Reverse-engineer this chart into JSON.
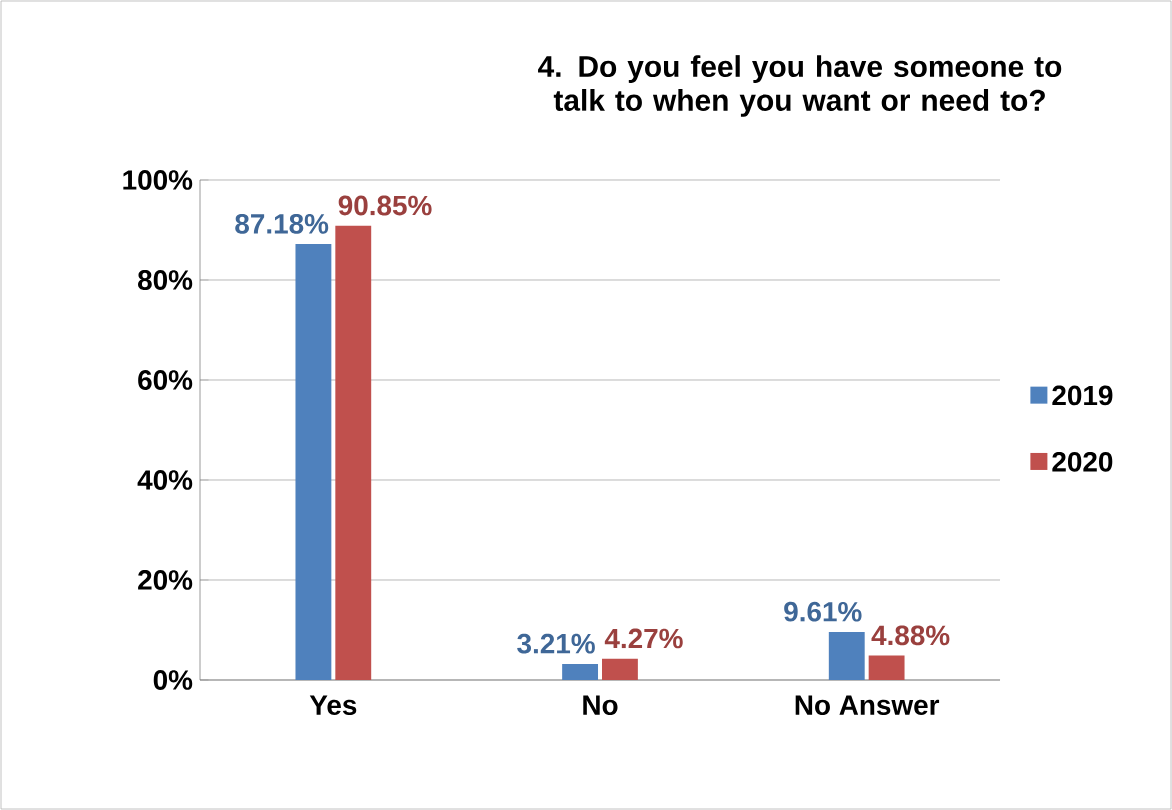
{
  "chart_data": {
    "type": "bar",
    "title": "4. Do you feel you have someone to talk to when you want or need to?",
    "categories": [
      "Yes",
      "No",
      "No Answer"
    ],
    "series": [
      {
        "name": "2019",
        "color": "#4f81bd",
        "values": [
          87.18,
          3.21,
          9.61
        ],
        "value_labels": [
          "87.18%",
          "3.21%",
          "9.61%"
        ]
      },
      {
        "name": "2020",
        "color": "#c0504d",
        "values": [
          90.85,
          4.27,
          4.88
        ],
        "value_labels": [
          "90.85%",
          "4.27%",
          "4.88%"
        ]
      }
    ],
    "ylim": [
      0,
      100
    ],
    "yticks": [
      {
        "value": 0,
        "label": "0%"
      },
      {
        "value": 20,
        "label": "20%"
      },
      {
        "value": 40,
        "label": "40%"
      },
      {
        "value": 60,
        "label": "60%"
      },
      {
        "value": 80,
        "label": "80%"
      },
      {
        "value": 100,
        "label": "100%"
      }
    ],
    "grid": "y",
    "legend": "right"
  }
}
